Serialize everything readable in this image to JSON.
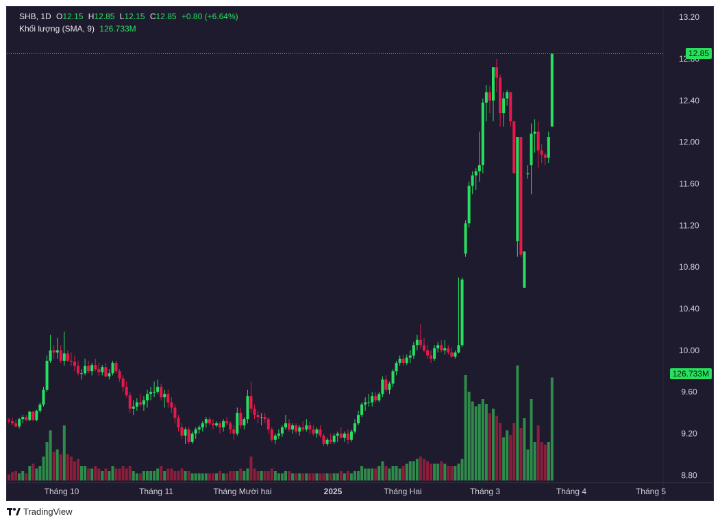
{
  "legend": {
    "symbol": "SHB, 1D",
    "o_label": "O",
    "o": "12.15",
    "h_label": "H",
    "h": "12.85",
    "l_label": "L",
    "l": "12.15",
    "c_label": "C",
    "c": "12.85",
    "change": "+0.80 (+6.64%)",
    "volume_label": "Khối lượng (SMA, 9)",
    "volume_value": "126.733M"
  },
  "last_price_tag": "12.85",
  "volume_tag": "126.733M",
  "footer": {
    "brand": "TradingView"
  },
  "colors": {
    "up": "#27e060",
    "down": "#e8194a",
    "vol_up": "#2e8b4a",
    "vol_down": "#8a1f3c",
    "background": "#1f1b2e"
  },
  "chart_data": {
    "type": "candlestick",
    "ylim": [
      8.73,
      13.3
    ],
    "y_ticks": [
      "13.20",
      "12.80",
      "12.40",
      "12.00",
      "11.60",
      "11.20",
      "10.80",
      "10.40",
      "10.00",
      "9.60",
      "9.20",
      "8.80"
    ],
    "x_labels": [
      "Tháng 10",
      "Tháng 11",
      "Tháng Mười hai",
      "2025",
      "Tháng Hai",
      "Tháng 3",
      "Tháng 4",
      "Tháng 5"
    ],
    "bars": [
      [
        9.33,
        9.35,
        9.3,
        9.32,
        0.25
      ],
      [
        9.32,
        9.35,
        9.28,
        9.3,
        0.35
      ],
      [
        9.3,
        9.33,
        9.26,
        9.27,
        0.4
      ],
      [
        9.27,
        9.35,
        9.25,
        9.34,
        0.3
      ],
      [
        9.34,
        9.38,
        9.3,
        9.36,
        0.4
      ],
      [
        9.36,
        9.38,
        9.32,
        9.33,
        0.3
      ],
      [
        9.33,
        9.42,
        9.32,
        9.41,
        0.6
      ],
      [
        9.41,
        9.42,
        9.32,
        9.33,
        0.7
      ],
      [
        9.33,
        9.43,
        9.32,
        9.42,
        0.5
      ],
      [
        9.42,
        9.5,
        9.4,
        9.48,
        0.6
      ],
      [
        9.48,
        9.65,
        9.46,
        9.62,
        1.0
      ],
      [
        9.62,
        9.95,
        9.6,
        9.9,
        1.6
      ],
      [
        9.9,
        10.15,
        9.88,
        10.0,
        2.1
      ],
      [
        10.0,
        10.05,
        9.92,
        9.98,
        1.2
      ],
      [
        9.98,
        10.12,
        9.92,
        10.0,
        1.3
      ],
      [
        10.0,
        10.05,
        9.88,
        9.9,
        1.1
      ],
      [
        9.9,
        10.18,
        9.85,
        9.97,
        2.3
      ],
      [
        9.97,
        10.0,
        9.89,
        9.9,
        1.1
      ],
      [
        9.9,
        9.98,
        9.85,
        9.89,
        1.0
      ],
      [
        9.89,
        9.95,
        9.8,
        9.85,
        0.8
      ],
      [
        9.85,
        9.9,
        9.76,
        9.78,
        0.9
      ],
      [
        9.78,
        9.82,
        9.72,
        9.78,
        0.6
      ],
      [
        9.78,
        9.92,
        9.76,
        9.85,
        0.6
      ],
      [
        9.85,
        9.9,
        9.78,
        9.8,
        0.5
      ],
      [
        9.8,
        9.88,
        9.76,
        9.86,
        0.5
      ],
      [
        9.86,
        9.92,
        9.8,
        9.82,
        0.6
      ],
      [
        9.82,
        9.88,
        9.75,
        9.79,
        0.5
      ],
      [
        9.79,
        9.86,
        9.76,
        9.84,
        0.4
      ],
      [
        9.84,
        9.88,
        9.74,
        9.75,
        0.5
      ],
      [
        9.75,
        9.82,
        9.72,
        9.78,
        0.4
      ],
      [
        9.78,
        9.9,
        9.76,
        9.88,
        0.6
      ],
      [
        9.88,
        9.9,
        9.78,
        9.8,
        0.5
      ],
      [
        9.8,
        9.82,
        9.7,
        9.73,
        0.5
      ],
      [
        9.73,
        9.76,
        9.6,
        9.65,
        0.6
      ],
      [
        9.65,
        9.7,
        9.55,
        9.57,
        0.5
      ],
      [
        9.57,
        9.6,
        9.4,
        9.44,
        0.6
      ],
      [
        9.44,
        9.52,
        9.38,
        9.46,
        0.4
      ],
      [
        9.46,
        9.54,
        9.42,
        9.5,
        0.3
      ],
      [
        9.5,
        9.58,
        9.46,
        9.48,
        0.3
      ],
      [
        9.48,
        9.56,
        9.42,
        9.52,
        0.4
      ],
      [
        9.52,
        9.62,
        9.45,
        9.58,
        0.4
      ],
      [
        9.58,
        9.65,
        9.52,
        9.6,
        0.4
      ],
      [
        9.6,
        9.7,
        9.55,
        9.6,
        0.4
      ],
      [
        9.6,
        9.72,
        9.58,
        9.65,
        0.5
      ],
      [
        9.65,
        9.68,
        9.52,
        9.55,
        0.6
      ],
      [
        9.55,
        9.62,
        9.45,
        9.58,
        0.4
      ],
      [
        9.58,
        9.62,
        9.45,
        9.5,
        0.5
      ],
      [
        9.5,
        9.55,
        9.4,
        9.45,
        0.5
      ],
      [
        9.45,
        9.48,
        9.3,
        9.35,
        0.4
      ],
      [
        9.35,
        9.38,
        9.22,
        9.26,
        0.4
      ],
      [
        9.26,
        9.3,
        9.15,
        9.18,
        0.5
      ],
      [
        9.18,
        9.26,
        9.1,
        9.24,
        0.4
      ],
      [
        9.24,
        9.26,
        9.1,
        9.12,
        0.4
      ],
      [
        9.12,
        9.22,
        9.1,
        9.2,
        0.3
      ],
      [
        9.2,
        9.26,
        9.15,
        9.24,
        0.3
      ],
      [
        9.24,
        9.28,
        9.2,
        9.26,
        0.3
      ],
      [
        9.26,
        9.32,
        9.22,
        9.3,
        0.3
      ],
      [
        9.3,
        9.36,
        9.26,
        9.34,
        0.3
      ],
      [
        9.34,
        9.36,
        9.28,
        9.3,
        0.3
      ],
      [
        9.3,
        9.34,
        9.24,
        9.28,
        0.3
      ],
      [
        9.28,
        9.32,
        9.26,
        9.3,
        0.3
      ],
      [
        9.3,
        9.32,
        9.2,
        9.26,
        0.4
      ],
      [
        9.26,
        9.34,
        9.22,
        9.32,
        0.3
      ],
      [
        9.32,
        9.36,
        9.28,
        9.3,
        0.3
      ],
      [
        9.3,
        9.32,
        9.2,
        9.24,
        0.4
      ],
      [
        9.24,
        9.28,
        9.14,
        9.2,
        0.4
      ],
      [
        9.2,
        9.45,
        9.18,
        9.4,
        0.4
      ],
      [
        9.4,
        9.45,
        9.25,
        9.28,
        0.5
      ],
      [
        9.28,
        9.36,
        9.24,
        9.34,
        0.4
      ],
      [
        9.34,
        9.62,
        9.3,
        9.56,
        0.5
      ],
      [
        9.56,
        9.7,
        9.4,
        9.44,
        1.0
      ],
      [
        9.44,
        9.48,
        9.34,
        9.38,
        0.5
      ],
      [
        9.38,
        9.42,
        9.3,
        9.36,
        0.4
      ],
      [
        9.36,
        9.4,
        9.28,
        9.36,
        0.4
      ],
      [
        9.36,
        9.4,
        9.3,
        9.34,
        0.4
      ],
      [
        9.34,
        9.36,
        9.2,
        9.24,
        0.4
      ],
      [
        9.24,
        9.26,
        9.12,
        9.14,
        0.5
      ],
      [
        9.14,
        9.2,
        9.1,
        9.18,
        0.4
      ],
      [
        9.18,
        9.24,
        9.15,
        9.2,
        0.3
      ],
      [
        9.2,
        9.28,
        9.17,
        9.26,
        0.3
      ],
      [
        9.26,
        9.38,
        9.24,
        9.3,
        0.4
      ],
      [
        9.3,
        9.34,
        9.22,
        9.24,
        0.4
      ],
      [
        9.24,
        9.3,
        9.2,
        9.28,
        0.3
      ],
      [
        9.28,
        9.3,
        9.2,
        9.22,
        0.3
      ],
      [
        9.22,
        9.28,
        9.18,
        9.26,
        0.3
      ],
      [
        9.26,
        9.32,
        9.22,
        9.24,
        0.3
      ],
      [
        9.24,
        9.34,
        9.22,
        9.28,
        0.3
      ],
      [
        9.28,
        9.32,
        9.2,
        9.24,
        0.3
      ],
      [
        9.24,
        9.28,
        9.18,
        9.2,
        0.3
      ],
      [
        9.2,
        9.26,
        9.16,
        9.24,
        0.3
      ],
      [
        9.24,
        9.28,
        9.16,
        9.18,
        0.3
      ],
      [
        9.18,
        9.2,
        9.08,
        9.1,
        0.3
      ],
      [
        9.1,
        9.16,
        9.08,
        9.14,
        0.3
      ],
      [
        9.14,
        9.2,
        9.1,
        9.12,
        0.3
      ],
      [
        9.12,
        9.2,
        9.1,
        9.18,
        0.3
      ],
      [
        9.18,
        9.22,
        9.12,
        9.2,
        0.3
      ],
      [
        9.2,
        9.26,
        9.15,
        9.16,
        0.4
      ],
      [
        9.16,
        9.22,
        9.12,
        9.2,
        0.3
      ],
      [
        9.2,
        9.24,
        9.1,
        9.14,
        0.4
      ],
      [
        9.14,
        9.24,
        9.12,
        9.22,
        0.3
      ],
      [
        9.22,
        9.34,
        9.2,
        9.3,
        0.4
      ],
      [
        9.3,
        9.42,
        9.28,
        9.38,
        0.4
      ],
      [
        9.38,
        9.5,
        9.36,
        9.48,
        0.6
      ],
      [
        9.48,
        9.55,
        9.42,
        9.5,
        0.5
      ],
      [
        9.5,
        9.58,
        9.46,
        9.5,
        0.5
      ],
      [
        9.5,
        9.6,
        9.46,
        9.56,
        0.5
      ],
      [
        9.56,
        9.6,
        9.5,
        9.52,
        0.5
      ],
      [
        9.52,
        9.6,
        9.5,
        9.58,
        0.6
      ],
      [
        9.58,
        9.75,
        9.55,
        9.72,
        0.8
      ],
      [
        9.72,
        9.76,
        9.6,
        9.62,
        0.6
      ],
      [
        9.62,
        9.7,
        9.58,
        9.68,
        0.5
      ],
      [
        9.68,
        9.82,
        9.65,
        9.8,
        0.6
      ],
      [
        9.8,
        9.9,
        9.76,
        9.88,
        0.6
      ],
      [
        9.88,
        9.95,
        9.85,
        9.92,
        0.5
      ],
      [
        9.92,
        9.96,
        9.85,
        9.88,
        0.6
      ],
      [
        9.88,
        9.96,
        9.86,
        9.93,
        0.7
      ],
      [
        9.93,
        10.0,
        9.88,
        9.95,
        0.8
      ],
      [
        9.95,
        10.08,
        9.92,
        10.05,
        0.8
      ],
      [
        10.05,
        10.15,
        10.0,
        10.1,
        0.9
      ],
      [
        10.1,
        10.25,
        10.02,
        10.05,
        1.0
      ],
      [
        10.05,
        10.12,
        9.98,
        10.0,
        0.9
      ],
      [
        10.0,
        10.05,
        9.92,
        9.95,
        0.8
      ],
      [
        9.95,
        10.0,
        9.88,
        9.92,
        0.7
      ],
      [
        9.92,
        10.05,
        9.9,
        10.02,
        0.7
      ],
      [
        10.02,
        10.08,
        9.98,
        10.05,
        0.7
      ],
      [
        10.05,
        10.1,
        9.98,
        10.0,
        0.8
      ],
      [
        10.0,
        10.1,
        9.96,
        10.02,
        0.7
      ],
      [
        10.02,
        10.05,
        9.96,
        9.98,
        0.6
      ],
      [
        9.98,
        10.03,
        9.93,
        9.94,
        0.6
      ],
      [
        9.94,
        10.0,
        9.92,
        9.98,
        0.6
      ],
      [
        9.98,
        10.7,
        9.97,
        10.05,
        0.7
      ],
      [
        10.05,
        10.7,
        10.03,
        10.68,
        0.9
      ],
      [
        10.93,
        11.25,
        10.9,
        11.22,
        4.4
      ],
      [
        11.22,
        11.62,
        11.18,
        11.58,
        3.7
      ],
      [
        11.58,
        11.72,
        11.5,
        11.68,
        3.3
      ],
      [
        11.68,
        11.75,
        11.54,
        11.72,
        3.1
      ],
      [
        11.72,
        12.1,
        11.62,
        11.78,
        3.2
      ],
      [
        11.78,
        12.42,
        11.7,
        12.38,
        3.4
      ],
      [
        12.38,
        12.55,
        12.2,
        12.48,
        3.2
      ],
      [
        12.48,
        12.54,
        12.28,
        12.4,
        2.8
      ],
      [
        12.4,
        12.72,
        12.2,
        12.72,
        3.0
      ],
      [
        12.72,
        12.8,
        12.48,
        12.62,
        2.7
      ],
      [
        12.62,
        12.65,
        12.15,
        12.28,
        2.4
      ],
      [
        12.28,
        12.48,
        12.15,
        12.42,
        1.8
      ],
      [
        12.42,
        12.5,
        12.35,
        12.48,
        2.1
      ],
      [
        12.48,
        12.42,
        12.15,
        12.2,
        1.9
      ],
      [
        12.2,
        12.2,
        11.7,
        11.7,
        2.4
      ],
      [
        11.05,
        12.05,
        10.9,
        12.05,
        4.8
      ],
      [
        12.05,
        11.7,
        10.9,
        10.92,
        2.2
      ],
      [
        10.6,
        10.95,
        10.6,
        10.95,
        2.6
      ],
      [
        11.7,
        11.78,
        11.65,
        11.7,
        1.3
      ],
      [
        11.78,
        12.18,
        11.5,
        12.08,
        3.4
      ],
      [
        12.08,
        12.22,
        11.9,
        12.1,
        1.6
      ],
      [
        12.1,
        12.2,
        11.75,
        11.92,
        2.3
      ],
      [
        11.92,
        11.98,
        11.8,
        11.88,
        1.6
      ],
      [
        11.88,
        11.9,
        11.78,
        11.85,
        1.5
      ],
      [
        11.85,
        12.1,
        11.8,
        12.05,
        1.6
      ],
      [
        12.15,
        12.85,
        12.15,
        12.85,
        4.3
      ]
    ]
  }
}
